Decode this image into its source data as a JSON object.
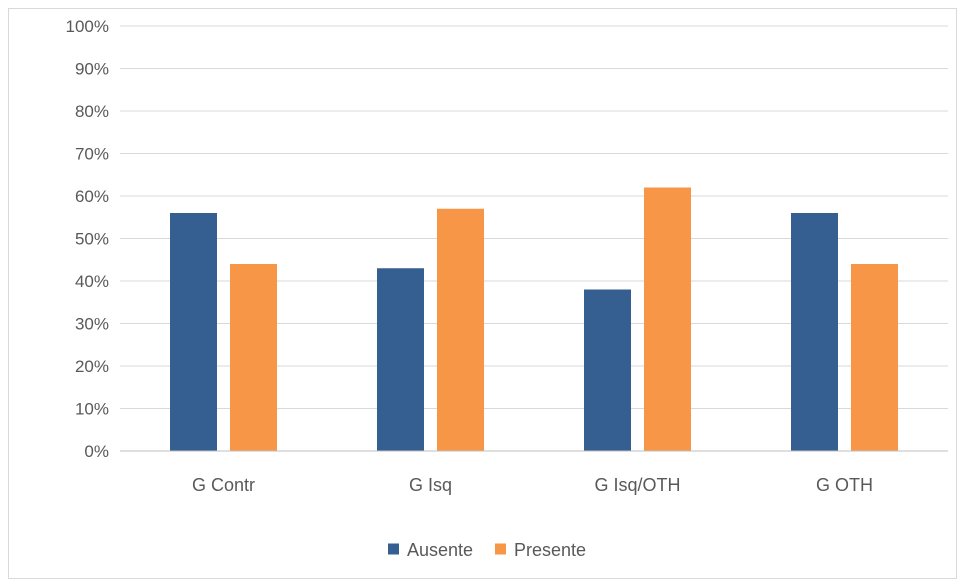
{
  "chart_data": {
    "type": "bar",
    "title": "",
    "xlabel": "",
    "ylabel": "",
    "categories": [
      "G Contr",
      "G Isq",
      "G Isq/OTH",
      "G OTH"
    ],
    "series": [
      {
        "name": "Ausente",
        "color": "#355E91",
        "values": [
          56,
          43,
          38,
          56
        ]
      },
      {
        "name": "Presente",
        "color": "#F79646",
        "values": [
          44,
          57,
          62,
          44
        ]
      }
    ],
    "ylim": [
      0,
      100
    ],
    "yticks": [
      0,
      10,
      20,
      30,
      40,
      50,
      60,
      70,
      80,
      90,
      100
    ],
    "ytick_format": "percent",
    "grid": true,
    "gridColor": "#d9d9d9",
    "legend": "bottom"
  }
}
